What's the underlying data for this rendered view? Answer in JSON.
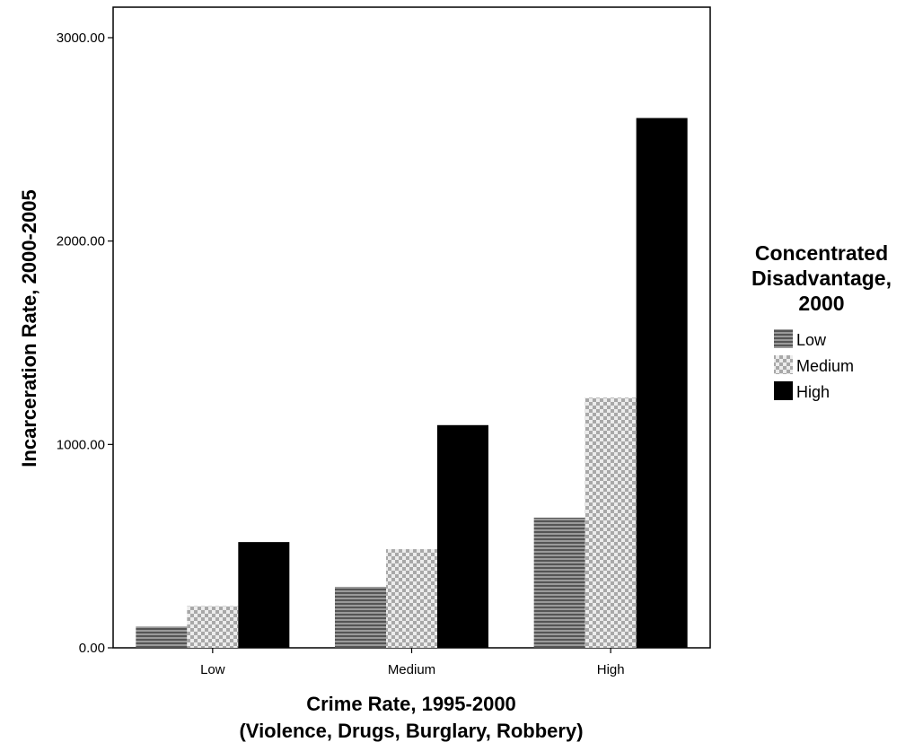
{
  "chart_data": {
    "type": "bar",
    "title": "",
    "xlabel_lines": [
      "Crime Rate, 1995-2000",
      "(Violence, Drugs, Burglary, Robbery)"
    ],
    "ylabel": "Incarceration Rate, 2000-2005",
    "categories": [
      "Low",
      "Medium",
      "High"
    ],
    "ylim": [
      0,
      3150
    ],
    "yticks": [
      "0.00",
      "1000.00",
      "2000.00",
      "3000.00"
    ],
    "ytick_values": [
      0,
      1000,
      2000,
      3000
    ],
    "grid": false,
    "legend": {
      "title_lines": [
        "Concentrated",
        "Disadvantage,",
        "2000"
      ],
      "placement": "right"
    },
    "series": [
      {
        "name": "Low",
        "values": [
          105,
          300,
          640
        ],
        "pattern": "horizontal-stripes",
        "color": "#777777"
      },
      {
        "name": "Medium",
        "values": [
          205,
          485,
          1230
        ],
        "pattern": "checker",
        "color": "#c8c8c8"
      },
      {
        "name": "High",
        "values": [
          520,
          1095,
          2605
        ],
        "pattern": "solid",
        "color": "#000000"
      }
    ]
  }
}
